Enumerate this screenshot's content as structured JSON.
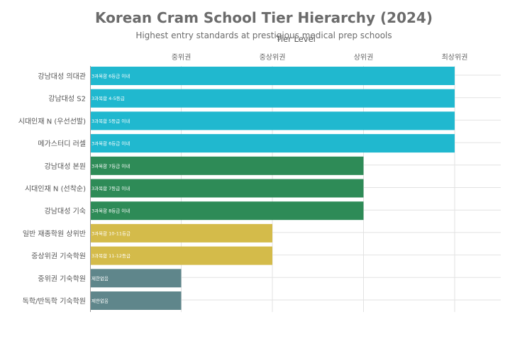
{
  "chart_data": {
    "type": "bar",
    "orientation": "horizontal",
    "title": "Korean Cram School Tier Hierarchy (2024)",
    "subtitle": "Highest entry standards at prestigious medical prep schools",
    "xlabel": "Tier Level",
    "x_axis_position": "top",
    "xlim": [
      0,
      4
    ],
    "x_ticks": [
      {
        "value": 1,
        "label": "중위권"
      },
      {
        "value": 2,
        "label": "중상위권"
      },
      {
        "value": 3,
        "label": "상위권"
      },
      {
        "value": 4,
        "label": "최상위권"
      }
    ],
    "grid": true,
    "categories": [
      "강남대성 의대관",
      "강남대성 S2",
      "시대인재 N (우선선발)",
      "메가스터디 러셀",
      "강남대성 본원",
      "시대인재 N (선착순)",
      "강남대성 기숙",
      "일반 재종학원 상위반",
      "중상위권 기숙학원",
      "중위권 기숙학원",
      "독학/반독학 기숙학원"
    ],
    "values": [
      4,
      4,
      4,
      4,
      3,
      3,
      3,
      2,
      2,
      1,
      1
    ],
    "bar_labels": [
      "3과목합 6등급 이내",
      "3과목합 4-5등급",
      "3과목합 5등급 이내",
      "3과목합 6등급 이내",
      "3과목합 7등급 이내",
      "3과목합 7등급 이내",
      "3과목합 8등급 이내",
      "3과목합 10-11등급",
      "3과목합 11-12등급",
      "제한없음",
      "제한없음"
    ],
    "colors": [
      "#20b8cf",
      "#20b8cf",
      "#20b8cf",
      "#20b8cf",
      "#2e8b57",
      "#2e8b57",
      "#2e8b57",
      "#d4bb4a",
      "#d4bb4a",
      "#5f868b",
      "#5f868b"
    ]
  }
}
